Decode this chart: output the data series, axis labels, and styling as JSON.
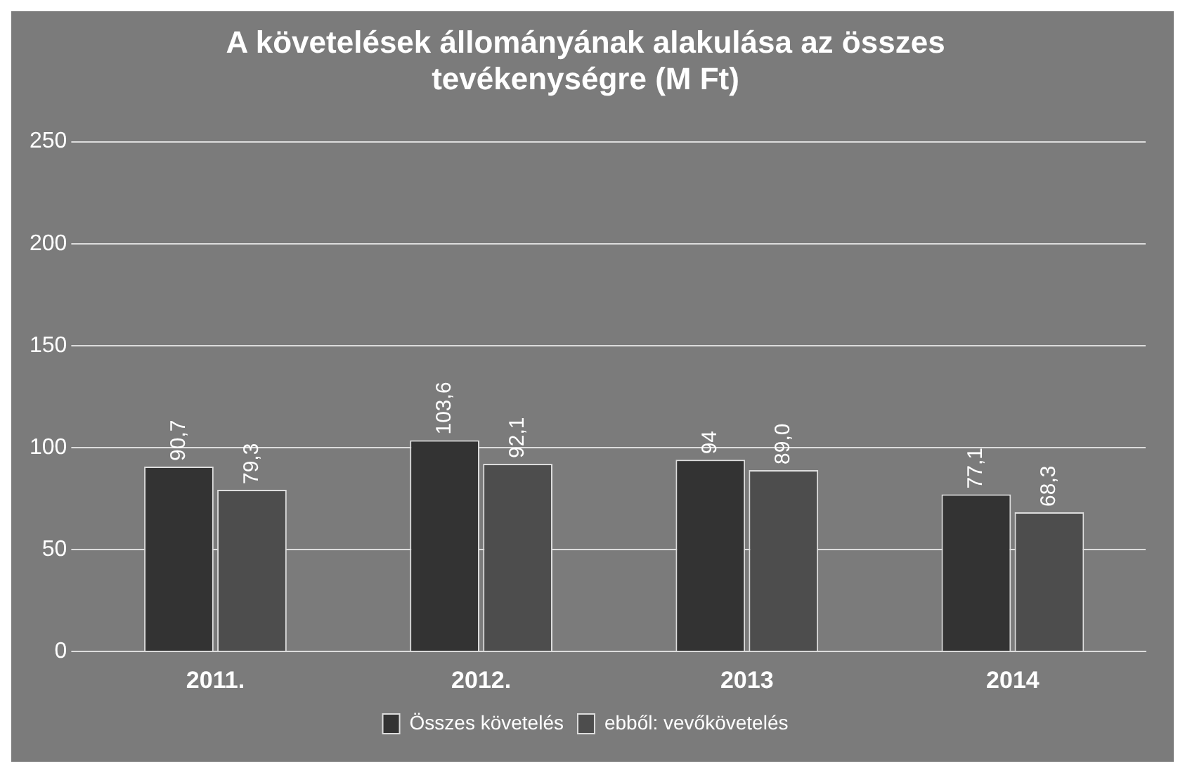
{
  "chart_data": {
    "type": "bar",
    "title": [
      "A követelések állományának alakulása az összes",
      "tevékenységre (M Ft)"
    ],
    "categories": [
      "2011.",
      "2012.",
      "2013",
      "2014"
    ],
    "series": [
      {
        "name": "Összes követelés",
        "color": "#333333",
        "values": [
          90.7,
          103.6,
          94,
          77.1
        ],
        "value_labels": [
          "90,7",
          "103,6",
          "94",
          "77,1"
        ]
      },
      {
        "name": "ebből: vevőkövetelés",
        "color": "#4d4d4d",
        "values": [
          79.3,
          92.1,
          89.0,
          68.3
        ],
        "value_labels": [
          "79,3",
          "92,1",
          "89,0",
          "68,3"
        ]
      }
    ],
    "ylim": [
      0,
      250
    ],
    "yticks": [
      0,
      50,
      100,
      150,
      200,
      250
    ],
    "grid": "y",
    "legend": "bottom"
  }
}
